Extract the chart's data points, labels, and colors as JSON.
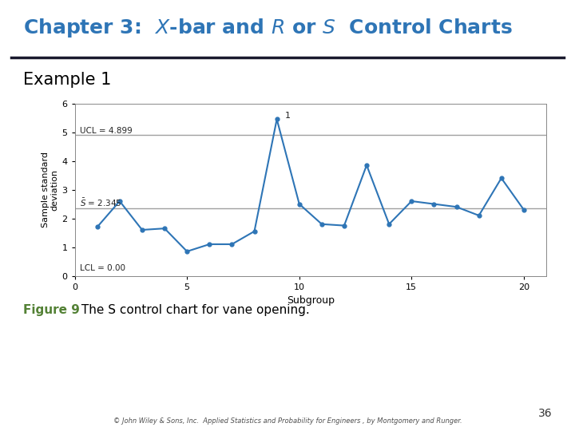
{
  "title_normal": "Chapter 3: ",
  "title_italic_parts": [
    "X-bar",
    "R",
    "S"
  ],
  "title_full": "Chapter 3:  $\\mathit{X}$-bar and $\\mathit{R}$ or $\\mathit{S}$ Control Charts",
  "example_label": "Example 1",
  "figure_caption_bold": "Figure 9",
  "figure_caption_rest": " The S control chart for vane opening.",
  "copyright": "© John Wiley & Sons, Inc.  Applied Statistics and Probability for Engineers , by Montgomery and Runger.",
  "page_number": "36",
  "subgroups": [
    1,
    2,
    3,
    4,
    5,
    6,
    7,
    8,
    9,
    10,
    11,
    12,
    13,
    14,
    15,
    16,
    17,
    18,
    19,
    20
  ],
  "s_values": [
    1.7,
    2.6,
    1.6,
    1.65,
    0.85,
    1.1,
    1.1,
    1.55,
    5.45,
    2.5,
    1.8,
    1.75,
    3.85,
    1.8,
    2.6,
    2.5,
    2.4,
    2.1,
    3.4,
    2.3
  ],
  "UCL": 4.899,
  "S_bar": 2.345,
  "LCL": 0.0,
  "out_of_control_idx": 8,
  "out_of_control_label": "1",
  "xlabel": "Subgroup",
  "ylabel": "Sample standard\ndeviation",
  "ylim": [
    0,
    6
  ],
  "xlim": [
    0,
    21
  ],
  "yticks": [
    0,
    1,
    2,
    3,
    4,
    5,
    6
  ],
  "xticks": [
    0,
    5,
    10,
    15,
    20
  ],
  "line_color": "#2E75B6",
  "control_line_color": "#A0A0A0",
  "title_color": "#2E75B6",
  "header_underline_color": "#1A1A2E",
  "example_color": "#000000",
  "figure_caption_color_bold": "#538135",
  "figure_caption_color_rest": "#000000",
  "copyright_color": "#505050",
  "bg_color": "#FFFFFF",
  "ucl_label": "UCL = 4.899",
  "sbar_label": "$\\bar{S}$ = 2.345",
  "lcl_label": "LCL = 0.00"
}
